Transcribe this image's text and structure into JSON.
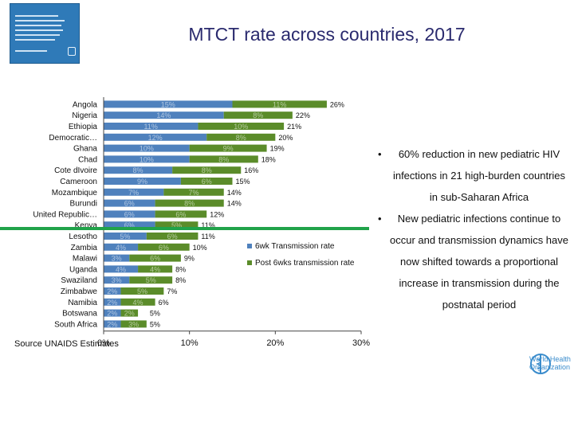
{
  "slide": {
    "title": "MTCT rate across countries, 2017",
    "source": "Source UNAIDS Estimates",
    "bullets": [
      "60% reduction in new pediatric HIV infections in 21 high-burden countries in sub-Saharan Africa",
      "New pediatric infections continue to occur and transmission dynamics have now shifted towards a proportional increase in transmission during the postnatal period"
    ],
    "logo": {
      "line1": "World Health",
      "line2": "Organization"
    },
    "colors": {
      "title": "#2a2a6e",
      "accent_line": "#21a34a",
      "cover": "#2f7ab8"
    }
  },
  "chart_data": {
    "type": "bar",
    "stacked": true,
    "orientation": "horizontal",
    "categories": [
      "Angola",
      "Nigeria",
      "Ethiopia",
      "Democratic…",
      "Ghana",
      "Chad",
      "Cote dIvoire",
      "Cameroon",
      "Mozambique",
      "Burundi",
      "United Republic…",
      "Kenya",
      "Lesotho",
      "Zambia",
      "Malawi",
      "Uganda",
      "Swaziland",
      "Zimbabwe",
      "Namibia",
      "Botswana",
      "South Africa"
    ],
    "series": [
      {
        "name": "6wk Transmission rate",
        "color": "#4f81bd",
        "values": [
          15,
          14,
          11,
          12,
          10,
          10,
          8,
          9,
          7,
          6,
          6,
          6,
          5,
          4,
          3,
          4,
          3,
          2,
          2,
          2,
          2
        ],
        "labels": [
          "15%",
          "14%",
          "11%",
          "12%",
          "10%",
          "10%",
          "8%",
          "9%",
          "7%",
          "6%",
          "6%",
          "6%",
          "5%",
          "4%",
          "3%",
          "4%",
          "3%",
          "2%",
          "2%",
          "2%",
          "2%"
        ]
      },
      {
        "name": "Post 6wks transmission rate",
        "color": "#5b8c2a",
        "values": [
          11,
          8,
          10,
          8,
          9,
          8,
          8,
          6,
          7,
          8,
          6,
          5,
          6,
          6,
          6,
          4,
          5,
          5,
          4,
          2,
          3
        ],
        "labels": [
          "11%",
          "8%",
          "10%",
          "8%",
          "9%",
          "8%",
          "8%",
          "6%",
          "7%",
          "8%",
          "6%",
          "5%",
          "6%",
          "6%",
          "6%",
          "4%",
          "5%",
          "5%",
          "4%",
          "2%",
          "3%"
        ]
      }
    ],
    "totals": [
      "26%",
      "22%",
      "21%",
      "20%",
      "19%",
      "18%",
      "16%",
      "15%",
      "14%",
      "14%",
      "12%",
      "11%",
      "11%",
      "10%",
      "9%",
      "8%",
      "8%",
      "7%",
      "6%",
      "5%",
      "5%"
    ],
    "total_values": [
      26,
      22,
      21,
      20,
      19,
      18,
      16,
      15,
      14,
      14,
      12,
      11,
      11,
      10,
      9,
      8,
      8,
      7,
      6,
      5,
      5
    ],
    "x_ticks": [
      "0%",
      "10%",
      "20%",
      "30%"
    ],
    "x_tick_values": [
      0,
      10,
      20,
      30
    ],
    "xlim": [
      0,
      30
    ],
    "grid": false,
    "legend": "right"
  }
}
